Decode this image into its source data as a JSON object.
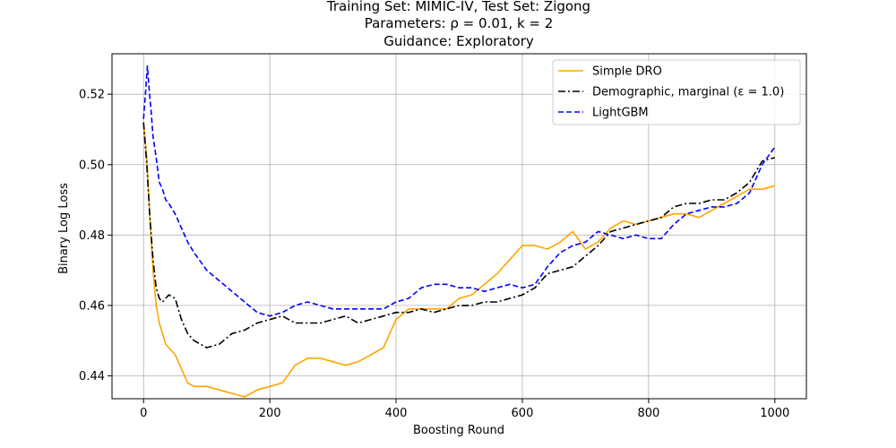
{
  "chart_data": {
    "type": "line",
    "title_lines": [
      "Training Set: MIMIC-IV, Test Set: Zigong",
      "Parameters: ρ = 0.01, k = 2",
      "Guidance: Exploratory"
    ],
    "xlabel": "Boosting Round",
    "ylabel": "Binary Log Loss",
    "xlim": [
      -50,
      1050
    ],
    "ylim": [
      0.4335,
      0.5315
    ],
    "xticks": [
      0,
      200,
      400,
      600,
      800,
      1000
    ],
    "xtick_labels": [
      "0",
      "200",
      "400",
      "600",
      "800",
      "1000"
    ],
    "yticks": [
      0.44,
      0.46,
      0.48,
      0.5,
      0.52
    ],
    "ytick_labels": [
      "0.44",
      "0.46",
      "0.48",
      "0.50",
      "0.52"
    ],
    "grid": true,
    "legend_position": "top-right",
    "series": [
      {
        "name": "Simple DRO",
        "color": "#ffa500",
        "dash": "solid",
        "x": [
          0,
          5,
          10,
          15,
          20,
          25,
          30,
          35,
          40,
          50,
          60,
          70,
          80,
          100,
          120,
          140,
          160,
          180,
          200,
          220,
          240,
          260,
          280,
          300,
          320,
          340,
          360,
          380,
          400,
          420,
          440,
          460,
          480,
          500,
          520,
          540,
          560,
          580,
          600,
          620,
          640,
          660,
          680,
          700,
          720,
          740,
          760,
          780,
          800,
          820,
          840,
          860,
          880,
          900,
          920,
          940,
          960,
          980,
          1000
        ],
        "values": [
          0.512,
          0.502,
          0.485,
          0.47,
          0.46,
          0.455,
          0.452,
          0.449,
          0.448,
          0.446,
          0.442,
          0.438,
          0.437,
          0.437,
          0.436,
          0.435,
          0.434,
          0.436,
          0.437,
          0.438,
          0.443,
          0.445,
          0.445,
          0.444,
          0.443,
          0.444,
          0.446,
          0.448,
          0.456,
          0.459,
          0.459,
          0.459,
          0.459,
          0.462,
          0.463,
          0.466,
          0.469,
          0.473,
          0.477,
          0.477,
          0.476,
          0.478,
          0.481,
          0.476,
          0.478,
          0.482,
          0.484,
          0.483,
          0.484,
          0.485,
          0.486,
          0.486,
          0.485,
          0.487,
          0.489,
          0.491,
          0.493,
          0.493,
          0.494
        ]
      },
      {
        "name": "Demographic, marginal (ε = 1.0)",
        "color": "#000000",
        "dash": "dashdot",
        "x": [
          0,
          5,
          10,
          15,
          20,
          25,
          30,
          35,
          40,
          50,
          60,
          70,
          80,
          100,
          120,
          140,
          160,
          180,
          200,
          220,
          240,
          260,
          280,
          300,
          320,
          340,
          360,
          380,
          400,
          420,
          440,
          460,
          480,
          500,
          520,
          540,
          560,
          580,
          600,
          620,
          640,
          660,
          680,
          700,
          720,
          740,
          760,
          780,
          800,
          820,
          840,
          860,
          880,
          900,
          920,
          940,
          960,
          980,
          1000
        ],
        "values": [
          0.512,
          0.5,
          0.485,
          0.473,
          0.465,
          0.462,
          0.461,
          0.462,
          0.463,
          0.462,
          0.456,
          0.452,
          0.45,
          0.448,
          0.449,
          0.452,
          0.453,
          0.455,
          0.456,
          0.457,
          0.455,
          0.455,
          0.455,
          0.456,
          0.457,
          0.455,
          0.456,
          0.457,
          0.458,
          0.458,
          0.459,
          0.458,
          0.459,
          0.46,
          0.46,
          0.461,
          0.461,
          0.462,
          0.463,
          0.465,
          0.469,
          0.47,
          0.471,
          0.474,
          0.477,
          0.481,
          0.482,
          0.483,
          0.484,
          0.485,
          0.488,
          0.489,
          0.489,
          0.49,
          0.49,
          0.492,
          0.495,
          0.501,
          0.502
        ]
      },
      {
        "name": "LightGBM",
        "color": "#0000ff",
        "dash": "dashed",
        "x": [
          0,
          3,
          6,
          9,
          12,
          15,
          20,
          25,
          30,
          35,
          40,
          50,
          60,
          70,
          80,
          100,
          120,
          140,
          160,
          180,
          200,
          220,
          240,
          260,
          280,
          300,
          320,
          340,
          360,
          380,
          400,
          420,
          440,
          460,
          480,
          500,
          520,
          540,
          560,
          580,
          600,
          620,
          640,
          660,
          680,
          700,
          720,
          740,
          760,
          780,
          800,
          820,
          840,
          860,
          880,
          900,
          920,
          940,
          960,
          980,
          1000
        ],
        "values": [
          0.513,
          0.52,
          0.528,
          0.521,
          0.515,
          0.508,
          0.502,
          0.495,
          0.493,
          0.49,
          0.489,
          0.486,
          0.482,
          0.478,
          0.475,
          0.47,
          0.467,
          0.464,
          0.461,
          0.458,
          0.457,
          0.458,
          0.46,
          0.461,
          0.46,
          0.459,
          0.459,
          0.459,
          0.459,
          0.459,
          0.461,
          0.462,
          0.465,
          0.466,
          0.466,
          0.465,
          0.465,
          0.464,
          0.465,
          0.466,
          0.465,
          0.466,
          0.471,
          0.475,
          0.477,
          0.478,
          0.481,
          0.48,
          0.479,
          0.48,
          0.479,
          0.479,
          0.483,
          0.486,
          0.487,
          0.488,
          0.488,
          0.489,
          0.492,
          0.5,
          0.505
        ]
      }
    ]
  }
}
